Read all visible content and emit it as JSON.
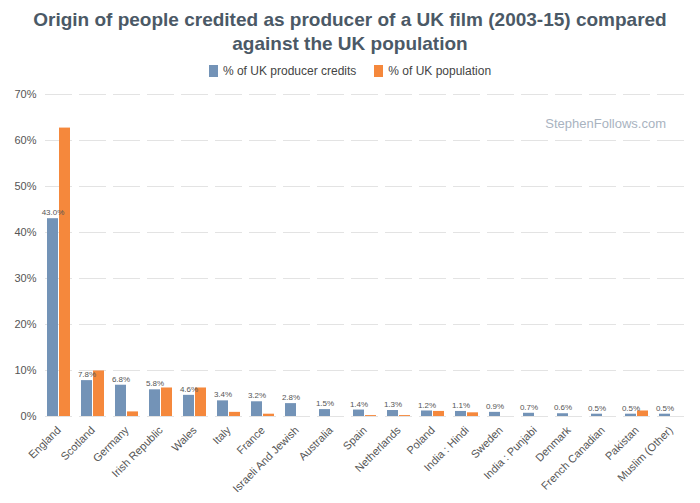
{
  "chart_data": {
    "type": "bar",
    "title": "Origin of people credited as producer of a UK film (2003-15) compared against the UK population",
    "annotations": [
      "StephenFollows.com"
    ],
    "categories": [
      "England",
      "Scotland",
      "Germany",
      "Irish Republic",
      "Wales",
      "Italy",
      "France",
      "Israeli And Jewish",
      "Australia",
      "Spain",
      "Netherlands",
      "Poland",
      "India : Hindi",
      "Sweden",
      "India : Punjabi",
      "Denmark",
      "French Canadian",
      "Pakistan",
      "Muslim (Other)"
    ],
    "series": [
      {
        "name": "% of UK producer credits",
        "color": "#7393b7",
        "values": [
          43.0,
          7.8,
          6.8,
          5.8,
          4.6,
          3.4,
          3.2,
          2.8,
          1.5,
          1.4,
          1.3,
          1.2,
          1.1,
          0.9,
          0.7,
          0.6,
          0.5,
          0.5,
          0.5
        ],
        "value_labels": [
          "43.0%",
          "7.8%",
          "6.8%",
          "5.8%",
          "4.6%",
          "3.4%",
          "3.2%",
          "2.8%",
          "1.5%",
          "1.4%",
          "1.3%",
          "1.2%",
          "1.1%",
          "0.9%",
          "0.7%",
          "0.6%",
          "0.5%",
          "0.5%",
          "0.5%"
        ]
      },
      {
        "name": "% of UK population",
        "color": "#f5883c",
        "values": [
          62.7,
          9.9,
          1.0,
          6.2,
          6.2,
          0.9,
          0.5,
          0,
          0,
          0.2,
          0.2,
          1.1,
          0.8,
          0,
          0,
          0,
          0,
          1.2,
          0
        ]
      }
    ],
    "ylim": [
      0,
      70
    ],
    "yticks": [
      {
        "value": 0,
        "label": "0%"
      },
      {
        "value": 10,
        "label": "10%"
      },
      {
        "value": 20,
        "label": "20%"
      },
      {
        "value": 30,
        "label": "30%"
      },
      {
        "value": 40,
        "label": "40%"
      },
      {
        "value": 50,
        "label": "50%"
      },
      {
        "value": 60,
        "label": "60%"
      },
      {
        "value": 70,
        "label": "70%"
      }
    ],
    "grid": true,
    "legend": "top",
    "data_labels": true
  }
}
